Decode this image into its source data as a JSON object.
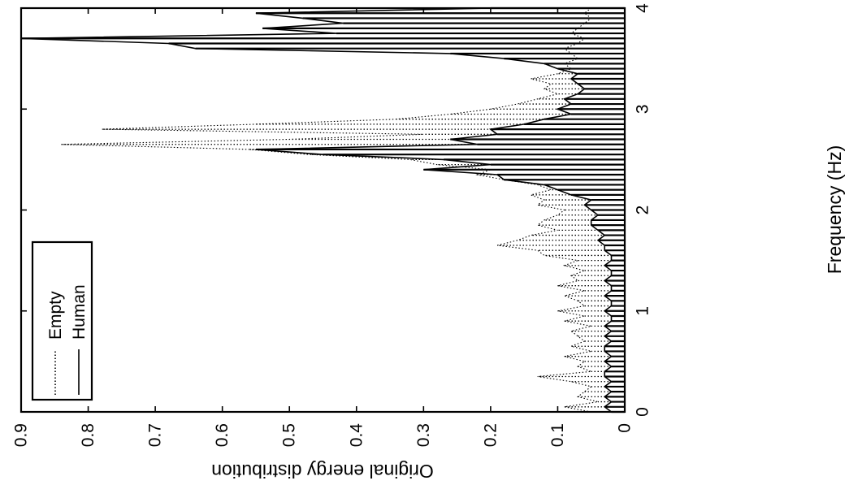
{
  "chart_data": {
    "type": "line",
    "orientation": "rotated-90-ccw",
    "xlabel": "Frequency (Hz)",
    "ylabel": "Original energy distribution",
    "xlim": [
      0,
      4
    ],
    "ylim": [
      0,
      0.9
    ],
    "x_ticks": [
      "0",
      "1",
      "2",
      "3",
      "4"
    ],
    "y_ticks": [
      "0",
      "0.1",
      "0.2",
      "0.3",
      "0.4",
      "0.5",
      "0.6",
      "0.7",
      "0.8",
      "0.9"
    ],
    "legend": {
      "placement": "top-left",
      "entries": [
        {
          "label": "Empty",
          "style": "dotted"
        },
        {
          "label": "Human",
          "style": "solid"
        }
      ]
    },
    "series": [
      {
        "name": "Empty",
        "style": "dotted",
        "color": "#000000",
        "x": [
          0.0,
          0.05,
          0.1,
          0.15,
          0.2,
          0.25,
          0.3,
          0.35,
          0.4,
          0.45,
          0.5,
          0.55,
          0.6,
          0.65,
          0.7,
          0.75,
          0.8,
          0.85,
          0.9,
          0.95,
          1.0,
          1.05,
          1.1,
          1.15,
          1.2,
          1.25,
          1.3,
          1.35,
          1.4,
          1.45,
          1.5,
          1.55,
          1.6,
          1.65,
          1.7,
          1.75,
          1.8,
          1.85,
          1.9,
          1.95,
          2.0,
          2.05,
          2.1,
          2.15,
          2.2,
          2.25,
          2.3,
          2.35,
          2.4,
          2.45,
          2.5,
          2.55,
          2.6,
          2.65,
          2.7,
          2.75,
          2.8,
          2.85,
          2.9,
          2.95,
          3.0,
          3.05,
          3.1,
          3.15,
          3.2,
          3.25,
          3.3,
          3.35,
          3.4,
          3.45,
          3.5,
          3.55,
          3.6,
          3.65,
          3.7,
          3.75,
          3.8,
          3.85,
          3.9,
          3.95,
          4.0
        ],
        "values": [
          0.05,
          0.09,
          0.04,
          0.07,
          0.06,
          0.05,
          0.08,
          0.13,
          0.05,
          0.07,
          0.06,
          0.09,
          0.05,
          0.08,
          0.06,
          0.07,
          0.08,
          0.05,
          0.09,
          0.06,
          0.1,
          0.06,
          0.07,
          0.09,
          0.06,
          0.1,
          0.07,
          0.08,
          0.06,
          0.09,
          0.07,
          0.12,
          0.13,
          0.19,
          0.16,
          0.14,
          0.1,
          0.13,
          0.12,
          0.1,
          0.09,
          0.13,
          0.12,
          0.14,
          0.11,
          0.13,
          0.18,
          0.22,
          0.2,
          0.28,
          0.32,
          0.47,
          0.56,
          0.84,
          0.5,
          0.3,
          0.78,
          0.55,
          0.34,
          0.26,
          0.2,
          0.16,
          0.13,
          0.1,
          0.12,
          0.11,
          0.14,
          0.1,
          0.08,
          0.09,
          0.07,
          0.08,
          0.09,
          0.07,
          0.06,
          0.08,
          0.07,
          0.06,
          0.05,
          0.06,
          0.05
        ]
      },
      {
        "name": "Human",
        "style": "solid",
        "color": "#000000",
        "x": [
          0.0,
          0.05,
          0.1,
          0.15,
          0.2,
          0.25,
          0.3,
          0.35,
          0.4,
          0.45,
          0.5,
          0.55,
          0.6,
          0.65,
          0.7,
          0.75,
          0.8,
          0.85,
          0.9,
          0.95,
          1.0,
          1.05,
          1.1,
          1.15,
          1.2,
          1.25,
          1.3,
          1.35,
          1.4,
          1.45,
          1.5,
          1.55,
          1.6,
          1.65,
          1.7,
          1.75,
          1.8,
          1.85,
          1.9,
          1.95,
          2.0,
          2.05,
          2.1,
          2.15,
          2.2,
          2.25,
          2.3,
          2.35,
          2.4,
          2.45,
          2.5,
          2.55,
          2.6,
          2.65,
          2.7,
          2.75,
          2.8,
          2.85,
          2.9,
          2.95,
          3.0,
          3.05,
          3.1,
          3.15,
          3.2,
          3.25,
          3.3,
          3.35,
          3.4,
          3.45,
          3.5,
          3.55,
          3.6,
          3.65,
          3.7,
          3.75,
          3.8,
          3.85,
          3.9,
          3.95,
          4.0
        ],
        "values": [
          0.02,
          0.03,
          0.02,
          0.03,
          0.02,
          0.03,
          0.02,
          0.03,
          0.03,
          0.02,
          0.03,
          0.02,
          0.03,
          0.03,
          0.02,
          0.03,
          0.02,
          0.03,
          0.02,
          0.02,
          0.03,
          0.02,
          0.02,
          0.03,
          0.02,
          0.02,
          0.03,
          0.02,
          0.02,
          0.03,
          0.02,
          0.02,
          0.03,
          0.03,
          0.04,
          0.03,
          0.04,
          0.05,
          0.05,
          0.04,
          0.05,
          0.06,
          0.05,
          0.08,
          0.1,
          0.12,
          0.18,
          0.19,
          0.3,
          0.2,
          0.27,
          0.45,
          0.55,
          0.22,
          0.26,
          0.19,
          0.2,
          0.15,
          0.12,
          0.08,
          0.1,
          0.08,
          0.09,
          0.07,
          0.06,
          0.07,
          0.08,
          0.07,
          0.1,
          0.12,
          0.18,
          0.26,
          0.64,
          0.68,
          0.9,
          0.43,
          0.54,
          0.42,
          0.48,
          0.55,
          0.2
        ]
      }
    ]
  }
}
